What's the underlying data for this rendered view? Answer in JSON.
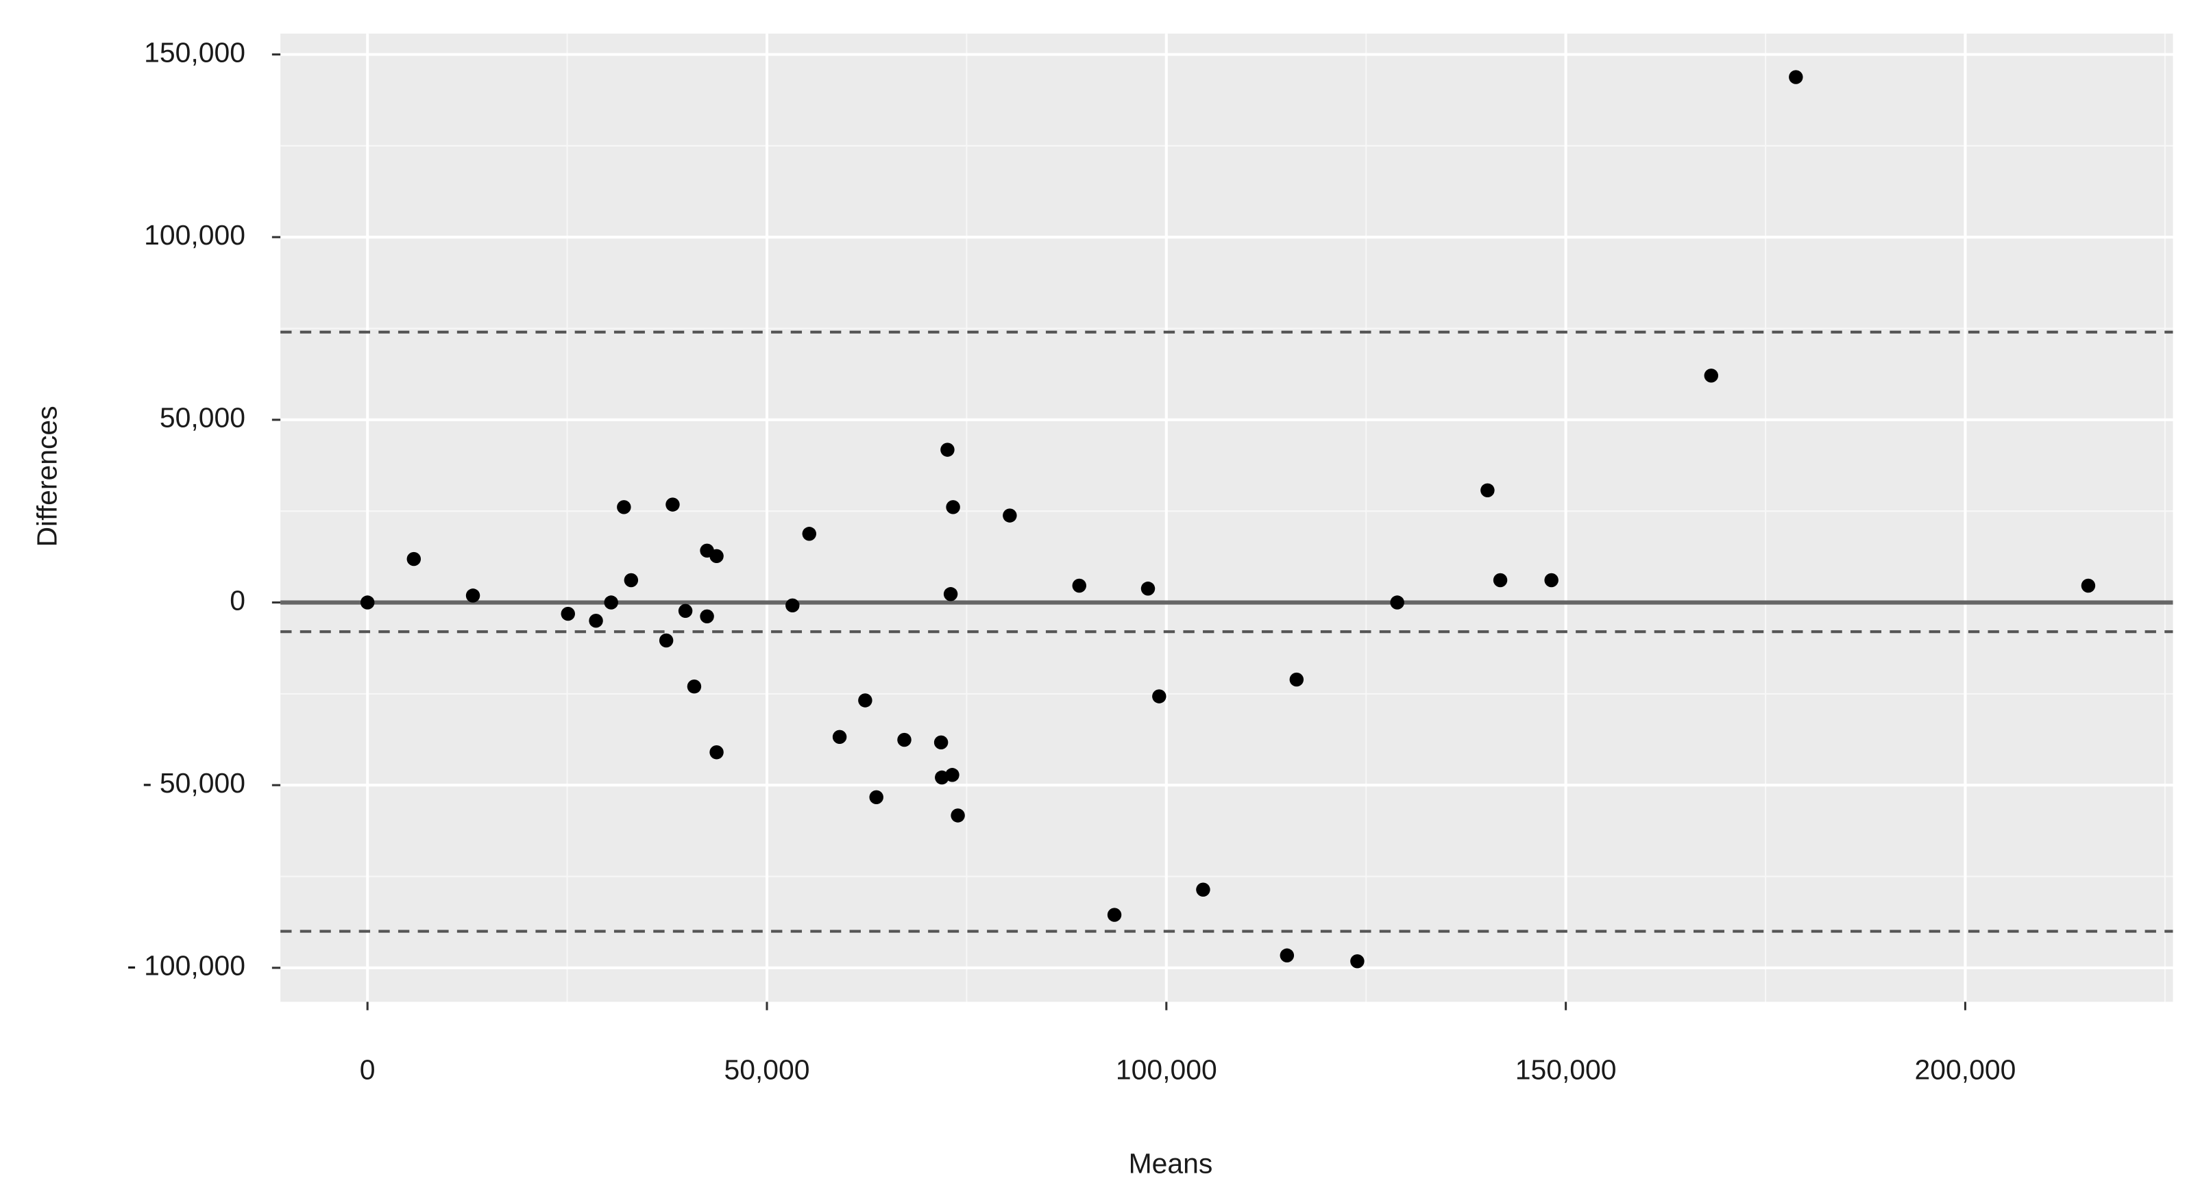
{
  "chart_data": {
    "type": "scatter",
    "x_label": "Means",
    "y_label": "Differences",
    "xlim": [
      -10900,
      226000
    ],
    "ylim": [
      -109300,
      155700
    ],
    "xticks": [
      0,
      {
        "value": 50000,
        "label": "50,000"
      },
      {
        "value": 100000,
        "label": "100,000"
      },
      {
        "value": 150000,
        "label": "150,000"
      },
      {
        "value": 200000,
        "label": "200,000"
      }
    ],
    "yticks": [
      {
        "value": 150000,
        "label": "150,000"
      },
      {
        "value": 100000,
        "label": "100,000"
      },
      {
        "value": 50000,
        "label": "50,000"
      },
      0,
      {
        "value": -50000,
        "label": "- 50,000"
      },
      {
        "value": -100000,
        "label": "- 100,000"
      }
    ],
    "x_minor_ticks": [
      25000,
      75000,
      125000,
      175000,
      225000
    ],
    "y_minor_ticks": [
      125000,
      75000,
      25000,
      -25000,
      -75000
    ],
    "grid": true,
    "color": "#000000",
    "reference_lines": [
      {
        "value": 0,
        "style": "solid"
      },
      {
        "value": 74000,
        "style": "dashed"
      },
      {
        "value": -8000,
        "style": "dashed"
      },
      {
        "value": -90000,
        "style": "dashed"
      }
    ],
    "x": [
      0,
      5800,
      13200,
      25100,
      28600,
      30500,
      32100,
      33000,
      37400,
      38200,
      39800,
      40900,
      42500,
      43700,
      42500,
      43700,
      53200,
      55300,
      59100,
      62300,
      63700,
      67200,
      71800,
      71900,
      73200,
      73900,
      72600,
      73300,
      73000,
      80400,
      89100,
      93500,
      97700,
      99100,
      104600,
      115100,
      116300,
      123900,
      128900,
      140200,
      141800,
      148200,
      168200,
      178800,
      215400
    ],
    "values": [
      0,
      11900,
      1900,
      -3100,
      -5000,
      0,
      26100,
      6100,
      -10400,
      26800,
      -2300,
      -23000,
      14200,
      12700,
      -3800,
      -41000,
      -800,
      18800,
      -36800,
      -26800,
      -53300,
      -37600,
      -38300,
      -47900,
      -47200,
      -58300,
      41800,
      26100,
      2300,
      23800,
      4600,
      -85500,
      3800,
      -25700,
      -78600,
      -96600,
      -21100,
      -98200,
      0,
      30700,
      6100,
      6100,
      62100,
      143800,
      4600
    ]
  }
}
